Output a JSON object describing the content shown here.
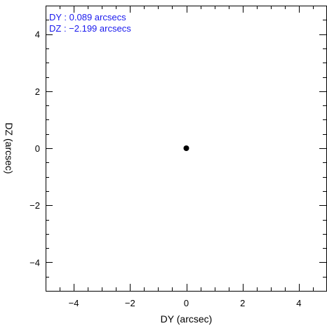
{
  "chart_data": {
    "type": "scatter",
    "title": "",
    "xlabel": "DY (arcsec)",
    "ylabel": "DZ (arcsec)",
    "xlim": [
      -5,
      5
    ],
    "ylim": [
      -5,
      5
    ],
    "x_ticks": [
      -4,
      -2,
      0,
      2,
      4
    ],
    "y_ticks": [
      -4,
      -2,
      0,
      2,
      4
    ],
    "x_minor_step": 0.5,
    "y_minor_step": 0.5,
    "grid": false,
    "points": [
      {
        "x": 0.0,
        "y": 0.0
      }
    ],
    "annotations": [
      {
        "name": "dy-annotation",
        "text": "DY : 0.089 arcsecs"
      },
      {
        "name": "dz-annotation",
        "text": "DZ : −2.199 arcsecs"
      }
    ],
    "colors": {
      "axes": "#000000",
      "points": "#000000",
      "annotation": "#1a1aee"
    }
  }
}
